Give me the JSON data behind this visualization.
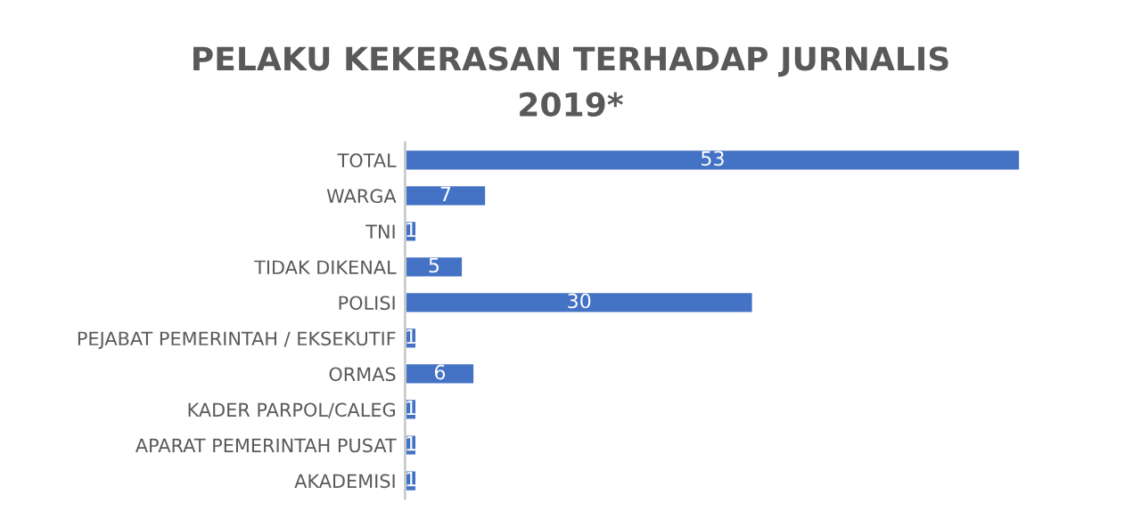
{
  "chart_data": {
    "type": "bar",
    "orientation": "horizontal",
    "title": "PELAKU KEKERASAN TERHADAP JURNALIS\n2019*",
    "categories": [
      "TOTAL",
      "WARGA",
      "TNI",
      "TIDAK DIKENAL",
      "POLISI",
      "PEJABAT PEMERINTAH / EKSEKUTIF",
      "ORMAS",
      "KADER PARPOL/CALEG",
      "APARAT PEMERINTAH PUSAT",
      "AKADEMISI"
    ],
    "values": [
      53,
      7,
      1,
      5,
      30,
      1,
      6,
      1,
      1,
      1
    ],
    "color": "#4472c4",
    "data_labels": true
  }
}
